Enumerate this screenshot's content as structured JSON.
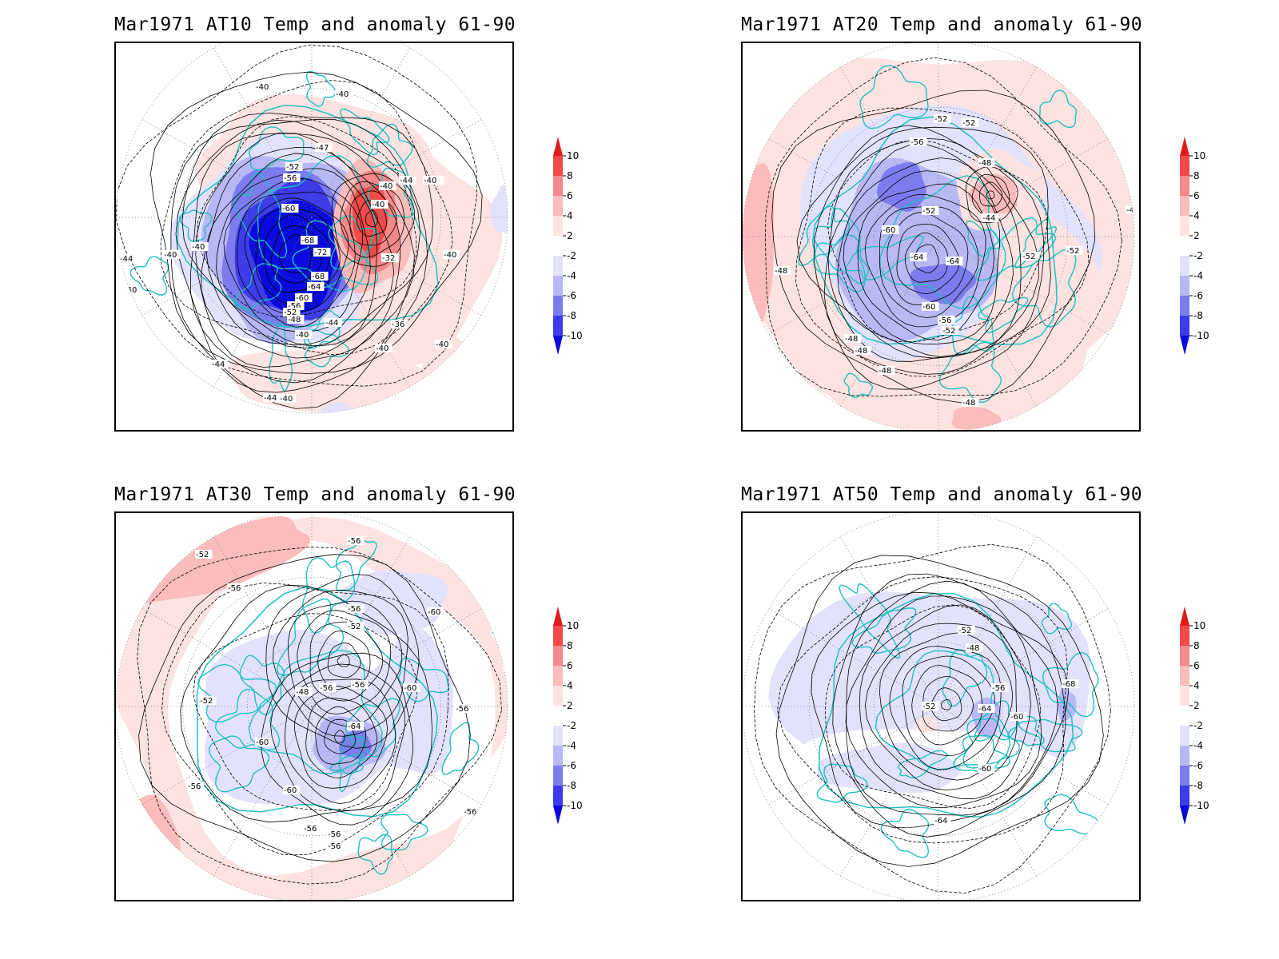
{
  "panels": [
    {
      "title": "Mar1971 AT10 Temp and anomaly 61-90",
      "contour_labels": [
        "-40",
        "-40",
        "-44",
        "-40",
        "-40",
        "-40",
        "-44",
        "-40",
        "-47",
        "-52",
        "-56",
        "-60",
        "-68",
        "-72",
        "-68",
        "-64",
        "-60",
        "-56",
        "-52",
        "-48",
        "-44",
        "-40",
        "-40",
        "-40",
        "-32",
        "-36",
        "-40",
        "-40",
        "-44",
        "-44",
        "-40",
        "-36",
        "-40",
        "-44"
      ],
      "anomaly_centers": [
        {
          "name": "cold-core",
          "level": -10
        },
        {
          "name": "warm-core",
          "level": 8
        }
      ]
    },
    {
      "title": "Mar1971 AT20 Temp and anomaly 61-90",
      "contour_labels": [
        "-52",
        "-52",
        "-56",
        "-48",
        "-52",
        "-44",
        "-60",
        "-64",
        "-64",
        "-52",
        "-60",
        "-56",
        "-52",
        "-48",
        "-48",
        "-48",
        "-48",
        "-48",
        "-52",
        "-48"
      ],
      "anomaly_centers": [
        {
          "name": "cold-core",
          "level": -6
        },
        {
          "name": "warm-core",
          "level": 4
        }
      ]
    },
    {
      "title": "Mar1971 AT30 Temp and anomaly 61-90",
      "contour_labels": [
        "-52",
        "-56",
        "-56",
        "-56",
        "-52",
        "-60",
        "-56",
        "-52",
        "-52",
        "-48",
        "-56",
        "-56",
        "-60",
        "-56",
        "-64",
        "-60",
        "-60",
        "-56",
        "-56",
        "-56",
        "-56",
        "-56"
      ],
      "anomaly_centers": [
        {
          "name": "cold-core",
          "level": -6
        },
        {
          "name": "warm-belt",
          "level": 4
        }
      ]
    },
    {
      "title": "Mar1971 AT50 Temp and anomaly 61-90",
      "contour_labels": [
        "-52",
        "-48",
        "-56",
        "-52",
        "-64",
        "-60",
        "-68",
        "-60",
        "-64"
      ],
      "anomaly_centers": [
        {
          "name": "cold-core",
          "level": -6
        }
      ]
    }
  ],
  "colorbar": {
    "levels": [
      "10",
      "8",
      "6",
      "4",
      "2",
      "-2",
      "-4",
      "-6",
      "-8",
      "-10"
    ],
    "colors": [
      "#e01b1b",
      "#f04a4a",
      "#f58888",
      "#fbbcbc",
      "#fde2e2",
      "#ffffff",
      "#e2e2fd",
      "#b8b8f5",
      "#7c7cee",
      "#3c3ce8",
      "#0a0adc"
    ]
  },
  "coast_color": "#20c0c0"
}
